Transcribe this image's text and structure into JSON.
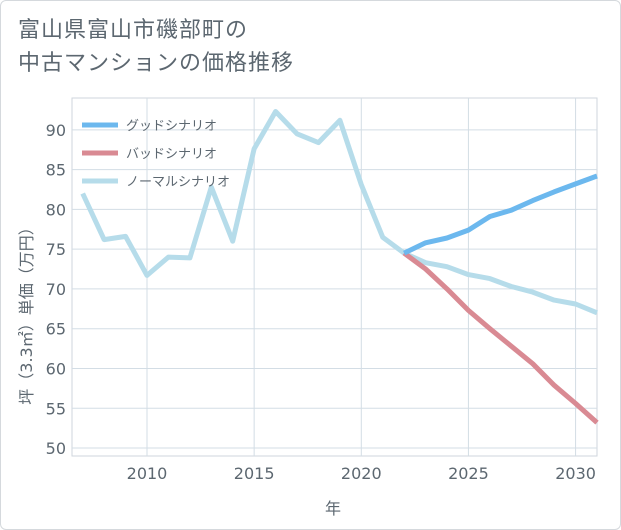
{
  "title_line1": "富山県富山市磯部町の",
  "title_line2": "中古マンションの価格推移",
  "chart_data": {
    "type": "line",
    "title": "富山県富山市磯部町の中古マンションの価格推移",
    "xlabel": "年",
    "ylabel": "坪（3.3㎡）単価（万円）",
    "xlim": [
      2006.5,
      2031
    ],
    "ylim": [
      49,
      94
    ],
    "xticks": [
      2010,
      2015,
      2020,
      2025,
      2030
    ],
    "yticks": [
      50,
      55,
      60,
      65,
      70,
      75,
      80,
      85,
      90
    ],
    "legend_position": "top-left",
    "series": [
      {
        "name": "グッドシナリオ",
        "color": "#6cb8ee",
        "x": [
          2022,
          2023,
          2024,
          2025,
          2026,
          2027,
          2028,
          2029,
          2030,
          2031
        ],
        "y": [
          74.5,
          75.8,
          76.4,
          77.4,
          79.1,
          79.9,
          81.1,
          82.2,
          83.2,
          84.2
        ]
      },
      {
        "name": "バッドシナリオ",
        "color": "#d98a93",
        "x": [
          2022,
          2023,
          2024,
          2025,
          2026,
          2027,
          2028,
          2029,
          2030,
          2031
        ],
        "y": [
          74.5,
          72.5,
          70.0,
          67.3,
          65.0,
          62.8,
          60.6,
          57.9,
          55.6,
          53.2
        ]
      },
      {
        "name": "ノーマルシナリオ",
        "color": "#b6dcea",
        "x": [
          2007,
          2008,
          2009,
          2010,
          2011,
          2012,
          2013,
          2014,
          2015,
          2016,
          2017,
          2018,
          2019,
          2020,
          2021,
          2022,
          2023,
          2024,
          2025,
          2026,
          2027,
          2028,
          2029,
          2030,
          2031
        ],
        "y": [
          82.0,
          76.2,
          76.6,
          71.7,
          74.0,
          73.9,
          82.8,
          76.0,
          87.6,
          92.3,
          89.5,
          88.4,
          91.2,
          83.1,
          76.5,
          74.5,
          73.3,
          72.8,
          71.8,
          71.3,
          70.3,
          69.6,
          68.6,
          68.1,
          67.0
        ]
      }
    ]
  }
}
